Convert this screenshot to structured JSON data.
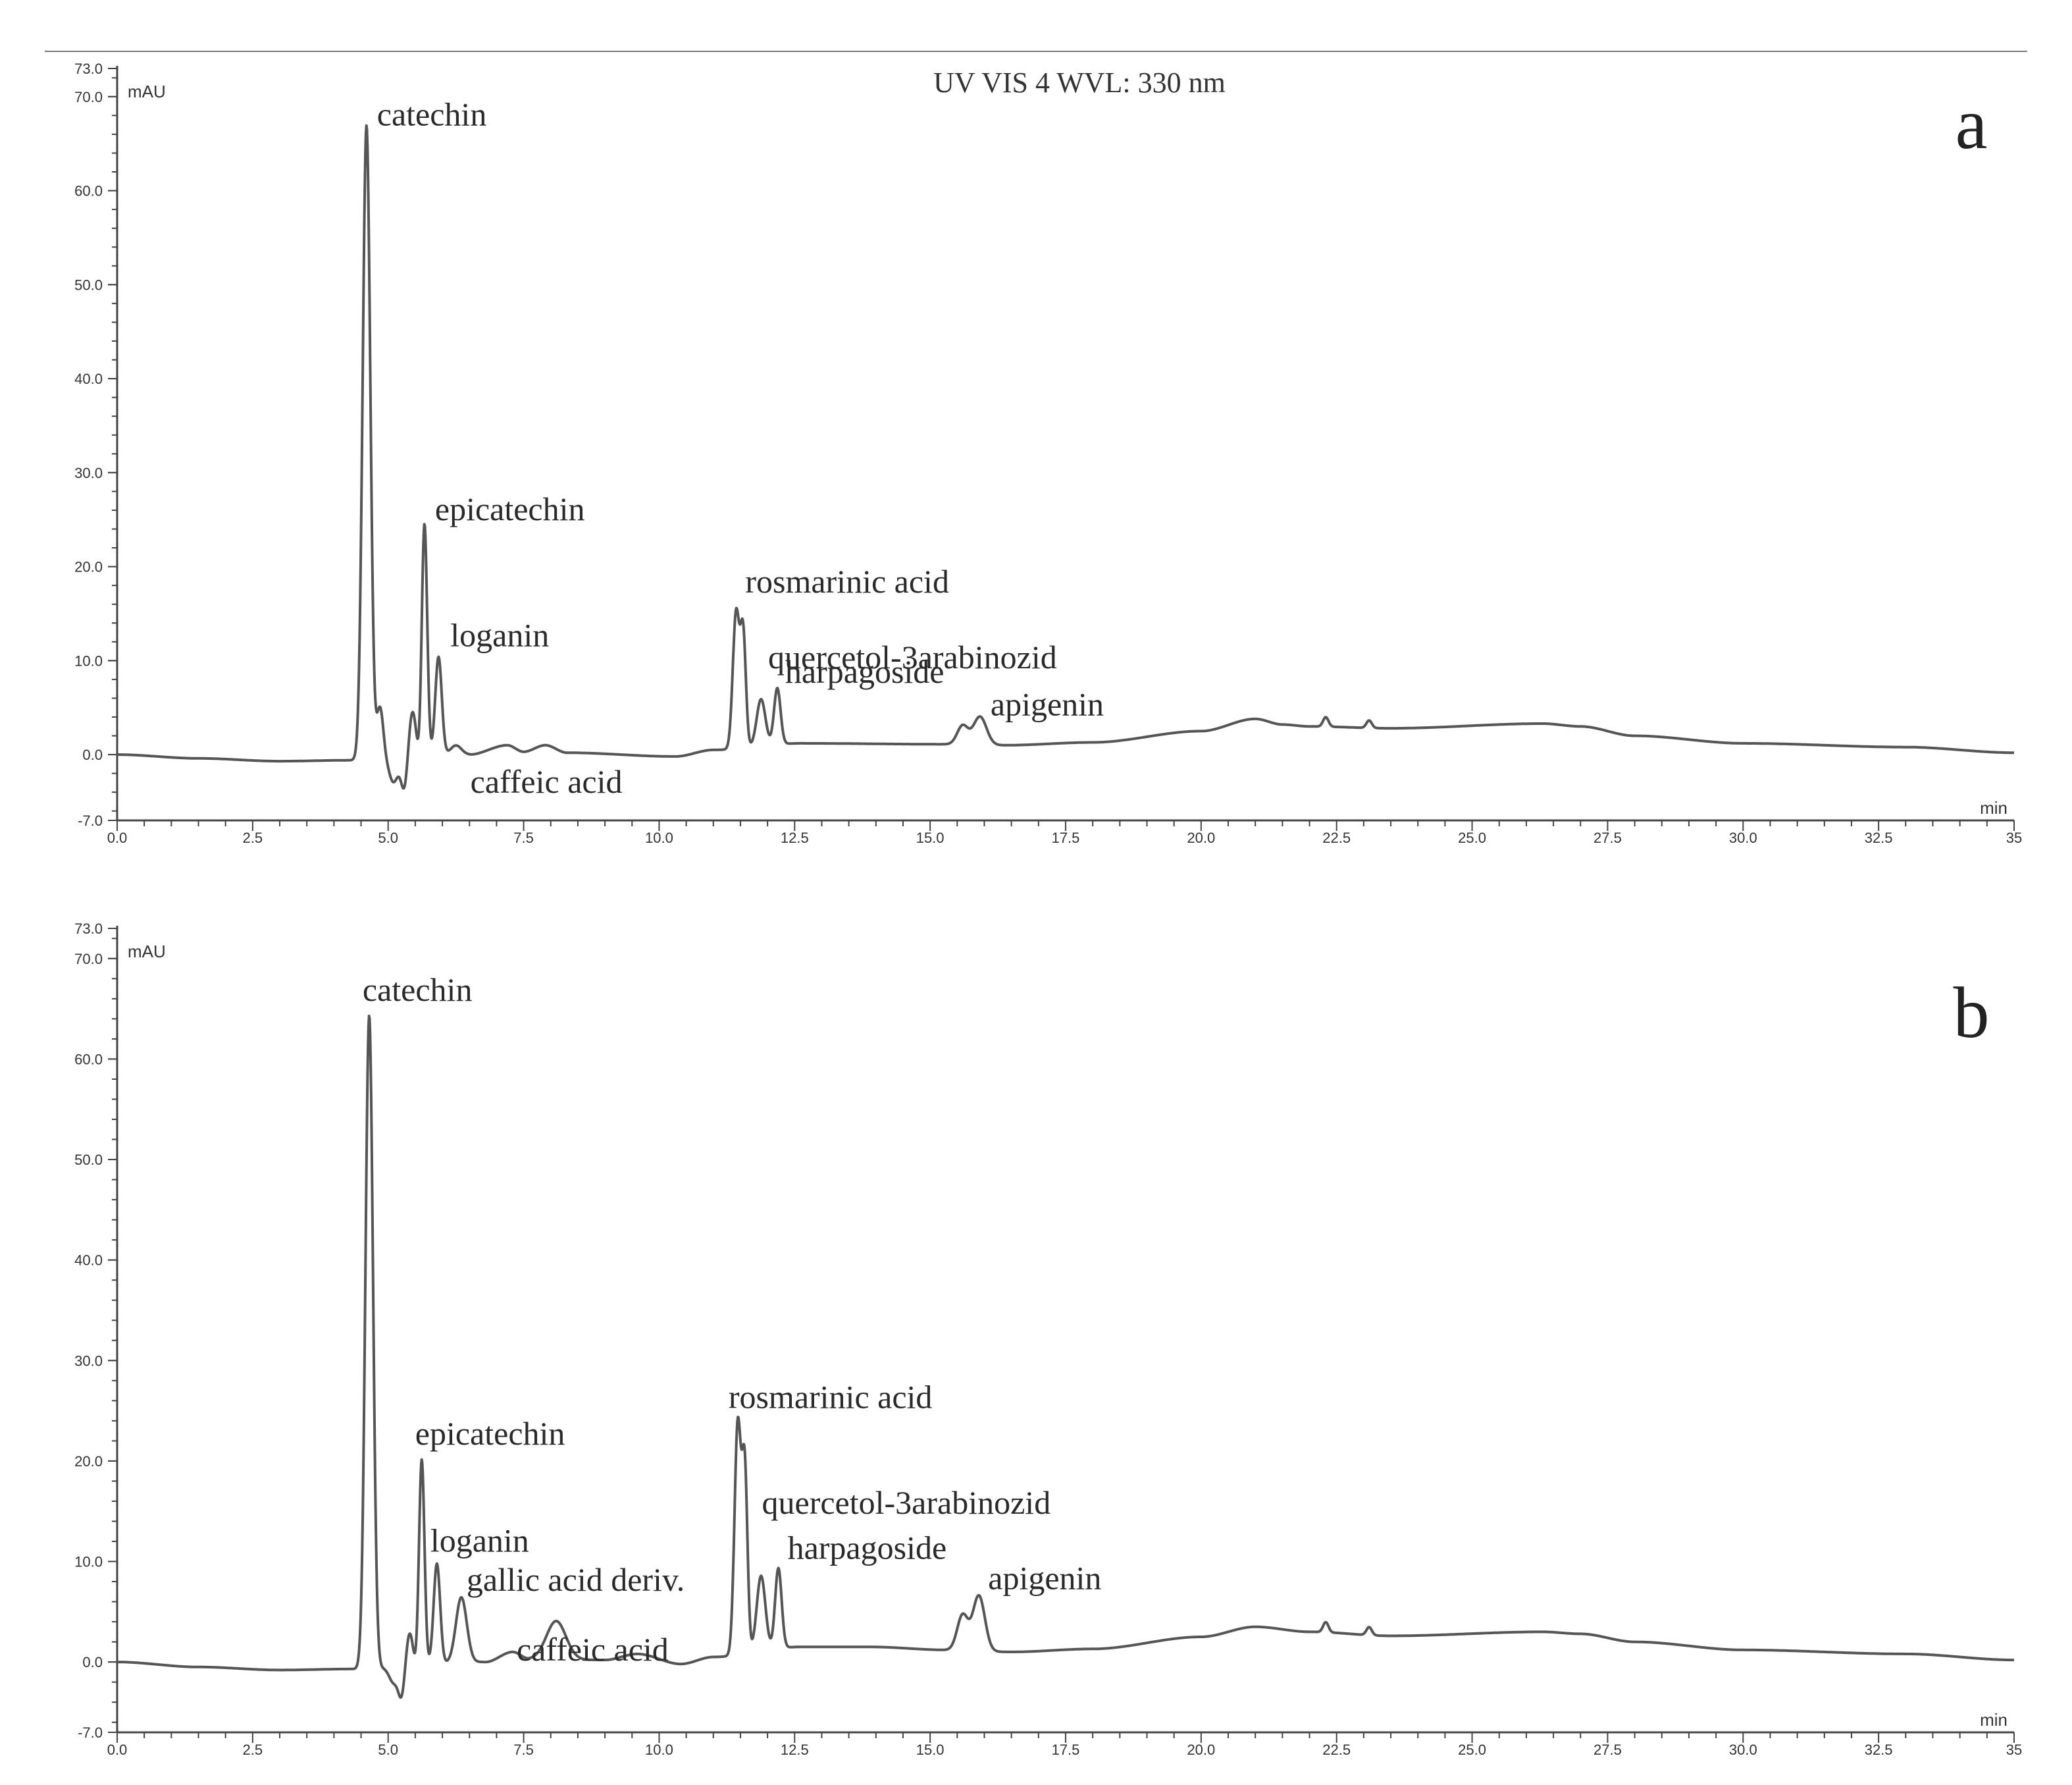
{
  "header": {
    "title": "UV VIS 4 WVL: 330 nm"
  },
  "colors": {
    "trace": "#555555",
    "axis": "#444444",
    "text": "#2a2a2a"
  },
  "chart_data": [
    {
      "type": "line",
      "panel_letter": "a",
      "ylabel": "mAU",
      "xlabel": "min",
      "xlim": [
        0,
        35
      ],
      "ylim": [
        -7.0,
        73.0
      ],
      "x_ticks": [
        "0.0",
        "2.5",
        "5.0",
        "7.5",
        "10.0",
        "12.5",
        "15.0",
        "17.5",
        "20.0",
        "22.5",
        "25.0",
        "27.5",
        "30.0",
        "32.5",
        "35"
      ],
      "y_ticks": [
        "73.0",
        "70.0",
        "60.0",
        "50.0",
        "40.0",
        "30.0",
        "20.0",
        "10.0",
        "0.0",
        "-7.0"
      ],
      "baseline": [
        [
          0,
          0
        ],
        [
          1.5,
          -0.4
        ],
        [
          3.0,
          -0.7
        ],
        [
          4.3,
          -0.6
        ],
        [
          6.5,
          0
        ],
        [
          7.2,
          1.0
        ],
        [
          7.5,
          0.3
        ],
        [
          7.9,
          1.0
        ],
        [
          8.3,
          0.2
        ],
        [
          10.3,
          -0.2
        ],
        [
          11.0,
          0.5
        ],
        [
          12.6,
          1.2
        ],
        [
          15.3,
          1.1
        ],
        [
          16.4,
          1.0
        ],
        [
          18.0,
          1.3
        ],
        [
          20.0,
          2.5
        ],
        [
          21.0,
          3.8
        ],
        [
          21.5,
          3.2
        ],
        [
          22.0,
          3.0
        ],
        [
          23.5,
          2.8
        ],
        [
          26.3,
          3.3
        ],
        [
          27.0,
          3.0
        ],
        [
          28.0,
          2.0
        ],
        [
          30.0,
          1.2
        ],
        [
          33.0,
          0.8
        ],
        [
          35.0,
          0.2
        ]
      ],
      "peaks": [
        {
          "rt": 4.6,
          "height": 67.5,
          "width": 0.07,
          "label": "catechin"
        },
        {
          "rt": 4.85,
          "height": 5.5,
          "width": 0.06
        },
        {
          "rt": 5.1,
          "height": -2.5,
          "width": 0.08
        },
        {
          "rt": 5.3,
          "height": -3.5,
          "width": 0.06
        },
        {
          "rt": 5.45,
          "height": 5.0,
          "width": 0.07
        },
        {
          "rt": 5.58,
          "height": -1.5,
          "width": 0.05
        },
        {
          "rt": 5.67,
          "height": 25.0,
          "width": 0.05,
          "label": "epicatechin"
        },
        {
          "rt": 5.93,
          "height": 10.5,
          "width": 0.06,
          "label": "loganin"
        },
        {
          "rt": 6.25,
          "height": 1.0,
          "width": 0.1,
          "label": "caffeic acid"
        },
        {
          "rt": 11.42,
          "height": 14.5,
          "width": 0.06,
          "label": "rosmarinic acid"
        },
        {
          "rt": 11.55,
          "height": 12.0,
          "width": 0.05,
          "label": "quercetol-3arabinozid"
        },
        {
          "rt": 11.88,
          "height": 5.0,
          "width": 0.08
        },
        {
          "rt": 12.18,
          "height": 6.0,
          "width": 0.06,
          "label": "harpagoside"
        },
        {
          "rt": 15.6,
          "height": 2.0,
          "width": 0.1
        },
        {
          "rt": 15.92,
          "height": 3.0,
          "width": 0.12,
          "label": "apigenin"
        },
        {
          "rt": 22.3,
          "height": 1.0,
          "width": 0.05
        },
        {
          "rt": 23.1,
          "height": 0.8,
          "width": 0.05
        }
      ]
    },
    {
      "type": "line",
      "panel_letter": "b",
      "ylabel": "mAU",
      "xlabel": "min",
      "xlim": [
        0,
        35
      ],
      "ylim": [
        -7.0,
        73.0
      ],
      "x_ticks": [
        "0.0",
        "2.5",
        "5.0",
        "7.5",
        "10.0",
        "12.5",
        "15.0",
        "17.5",
        "20.0",
        "22.5",
        "25.0",
        "27.5",
        "30.0",
        "32.5",
        "35"
      ],
      "y_ticks": [
        "73.0",
        "70.0",
        "60.0",
        "50.0",
        "40.0",
        "30.0",
        "20.0",
        "10.0",
        "0.0",
        "-7.0"
      ],
      "baseline": [
        [
          0,
          0
        ],
        [
          1.5,
          -0.5
        ],
        [
          3.0,
          -0.8
        ],
        [
          4.3,
          -0.7
        ],
        [
          6.8,
          0
        ],
        [
          7.3,
          1.0
        ],
        [
          7.6,
          0.3
        ],
        [
          9.0,
          0.2
        ],
        [
          9.6,
          0.8
        ],
        [
          10.4,
          -0.2
        ],
        [
          11.0,
          0.5
        ],
        [
          12.6,
          1.5
        ],
        [
          13.9,
          1.5
        ],
        [
          15.3,
          1.2
        ],
        [
          16.5,
          1.0
        ],
        [
          18.0,
          1.3
        ],
        [
          20.0,
          2.5
        ],
        [
          21.0,
          3.5
        ],
        [
          22.0,
          3.0
        ],
        [
          23.5,
          2.6
        ],
        [
          26.3,
          3.0
        ],
        [
          27.0,
          2.8
        ],
        [
          28.0,
          2.0
        ],
        [
          30.0,
          1.2
        ],
        [
          33.0,
          0.8
        ],
        [
          35.0,
          0.2
        ]
      ],
      "peaks": [
        {
          "rt": 4.65,
          "height": 65.0,
          "width": 0.07,
          "label": "catechin"
        },
        {
          "rt": 5.1,
          "height": -1.5,
          "width": 0.08
        },
        {
          "rt": 5.25,
          "height": -3.0,
          "width": 0.06
        },
        {
          "rt": 5.4,
          "height": 3.5,
          "width": 0.07
        },
        {
          "rt": 5.5,
          "height": -1.0,
          "width": 0.05
        },
        {
          "rt": 5.62,
          "height": 20.5,
          "width": 0.05,
          "label": "epicatechin"
        },
        {
          "rt": 5.9,
          "height": 10.0,
          "width": 0.06,
          "label": "loganin"
        },
        {
          "rt": 6.35,
          "height": 6.5,
          "width": 0.1,
          "label": "gallic acid deriv."
        },
        {
          "rt": 8.1,
          "height": 3.8,
          "width": 0.18,
          "label": "caffeic acid"
        },
        {
          "rt": 11.45,
          "height": 23.0,
          "width": 0.06,
          "label": "rosmarinic acid"
        },
        {
          "rt": 11.58,
          "height": 18.0,
          "width": 0.05,
          "label": "quercetol-3arabinozid"
        },
        {
          "rt": 11.88,
          "height": 7.5,
          "width": 0.08
        },
        {
          "rt": 12.2,
          "height": 8.0,
          "width": 0.06,
          "label": "harpagoside"
        },
        {
          "rt": 15.6,
          "height": 3.5,
          "width": 0.1
        },
        {
          "rt": 15.9,
          "height": 5.5,
          "width": 0.11,
          "label": "apigenin"
        },
        {
          "rt": 22.3,
          "height": 1.0,
          "width": 0.05
        },
        {
          "rt": 23.1,
          "height": 0.8,
          "width": 0.05
        }
      ]
    }
  ]
}
